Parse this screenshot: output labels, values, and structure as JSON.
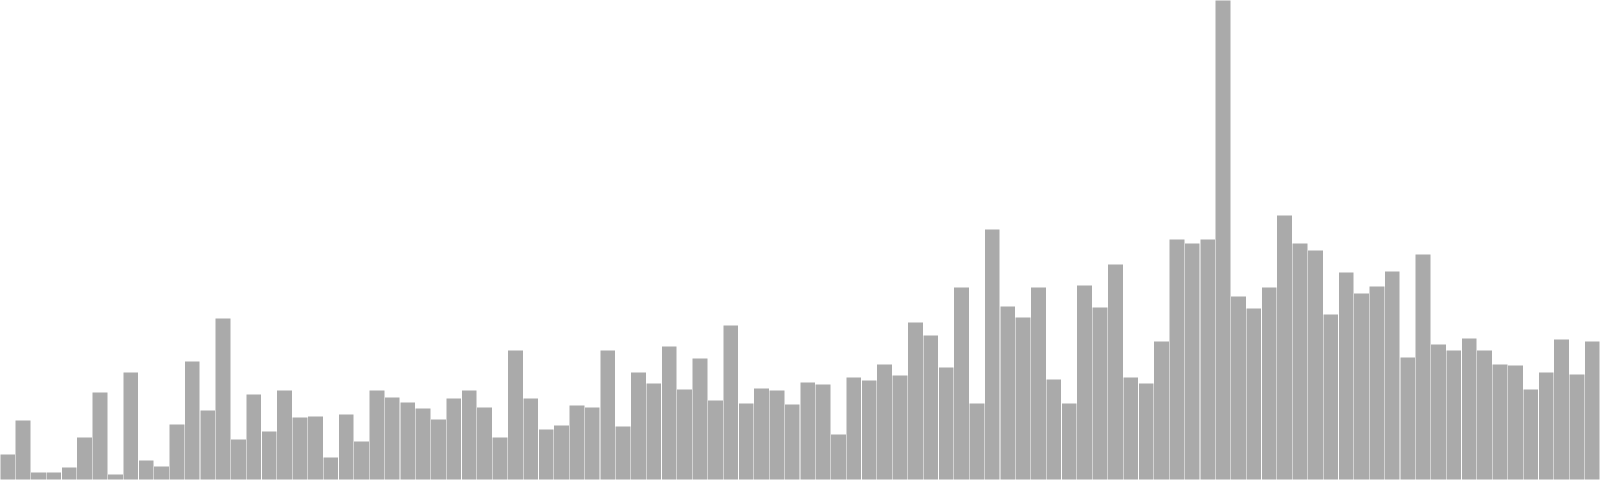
{
  "chart_data": {
    "type": "bar",
    "title": "",
    "xlabel": "",
    "ylabel": "",
    "ylim": [
      0,
      480
    ],
    "grid": false,
    "legend": "none",
    "bar_color": "#aaaaaa",
    "bar_edge_color": "#ffffff",
    "values": [
      26,
      60,
      8,
      8,
      13,
      43,
      88,
      6,
      108,
      20,
      14,
      56,
      119,
      70,
      162,
      41,
      86,
      49,
      90,
      63,
      64,
      23,
      66,
      39,
      90,
      83,
      78,
      72,
      61,
      82,
      90,
      73,
      43,
      130,
      82,
      51,
      55,
      75,
      73,
      130,
      54,
      108,
      97,
      134,
      91,
      122,
      80,
      155,
      77,
      92,
      90,
      76,
      98,
      96,
      46,
      103,
      100,
      116,
      105,
      158,
      145,
      113,
      193,
      77,
      251,
      174,
      163,
      193,
      101,
      77,
      195,
      173,
      216,
      103,
      97,
      139,
      241,
      237,
      241,
      480,
      184,
      172,
      193,
      265,
      237,
      230,
      166,
      208,
      187,
      194,
      209,
      123,
      226,
      136,
      130,
      142,
      130,
      116,
      115,
      91,
      108,
      141,
      106,
      139
    ]
  }
}
